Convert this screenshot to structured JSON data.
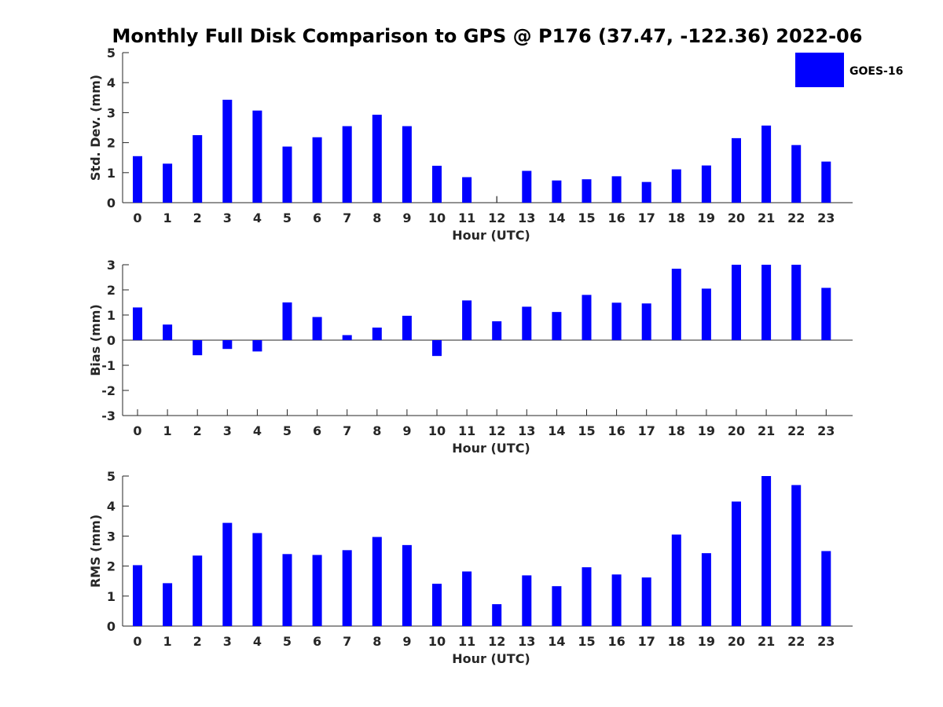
{
  "title": "Monthly Full Disk Comparison to GPS @ P176 (37.47, -122.36) 2022-06",
  "legend": {
    "label": "GOES-16",
    "color": "#0000ff"
  },
  "chart_data": [
    {
      "type": "bar",
      "xlabel": "Hour (UTC)",
      "ylabel": "Std. Dev. (mm)",
      "ylim": [
        0,
        5
      ],
      "yticks": [
        0,
        1,
        2,
        3,
        4,
        5
      ],
      "categories": [
        "0",
        "1",
        "2",
        "3",
        "4",
        "5",
        "6",
        "7",
        "8",
        "9",
        "10",
        "11",
        "12",
        "13",
        "14",
        "15",
        "16",
        "17",
        "18",
        "19",
        "20",
        "21",
        "22",
        "23"
      ],
      "series": [
        {
          "name": "GOES-16",
          "values": [
            1.55,
            1.3,
            2.25,
            3.43,
            3.07,
            1.87,
            2.18,
            2.55,
            2.93,
            2.55,
            1.23,
            0.85,
            0.22,
            1.06,
            0.74,
            0.78,
            0.88,
            0.69,
            1.11,
            1.24,
            2.15,
            2.57,
            1.92,
            1.37
          ]
        }
      ]
    },
    {
      "type": "bar",
      "xlabel": "Hour (UTC)",
      "ylabel": "Bias (mm)",
      "ylim": [
        -3,
        3
      ],
      "yticks": [
        -3,
        -2,
        -1,
        0,
        1,
        2,
        3
      ],
      "categories": [
        "0",
        "1",
        "2",
        "3",
        "4",
        "5",
        "6",
        "7",
        "8",
        "9",
        "10",
        "11",
        "12",
        "13",
        "14",
        "15",
        "16",
        "17",
        "18",
        "19",
        "20",
        "21",
        "22",
        "23"
      ],
      "series": [
        {
          "name": "GOES-16",
          "values": [
            1.3,
            0.62,
            -0.6,
            -0.35,
            -0.45,
            1.5,
            0.92,
            0.2,
            0.5,
            0.97,
            -0.63,
            1.58,
            0.75,
            1.33,
            1.12,
            1.8,
            1.49,
            1.46,
            2.84,
            2.05,
            3.0,
            3.0,
            3.0,
            2.08
          ]
        }
      ]
    },
    {
      "type": "bar",
      "xlabel": "Hour (UTC)",
      "ylabel": "RMS (mm)",
      "ylim": [
        0,
        5
      ],
      "yticks": [
        0,
        1,
        2,
        3,
        4,
        5
      ],
      "categories": [
        "0",
        "1",
        "2",
        "3",
        "4",
        "5",
        "6",
        "7",
        "8",
        "9",
        "10",
        "11",
        "12",
        "13",
        "14",
        "15",
        "16",
        "17",
        "18",
        "19",
        "20",
        "21",
        "22",
        "23"
      ],
      "series": [
        {
          "name": "GOES-16",
          "values": [
            2.03,
            1.43,
            2.35,
            3.44,
            3.1,
            2.4,
            2.37,
            2.53,
            2.97,
            2.7,
            1.41,
            1.82,
            0.73,
            1.69,
            1.33,
            1.96,
            1.72,
            1.62,
            3.05,
            2.43,
            4.15,
            5.0,
            4.7,
            2.5
          ]
        }
      ]
    }
  ]
}
